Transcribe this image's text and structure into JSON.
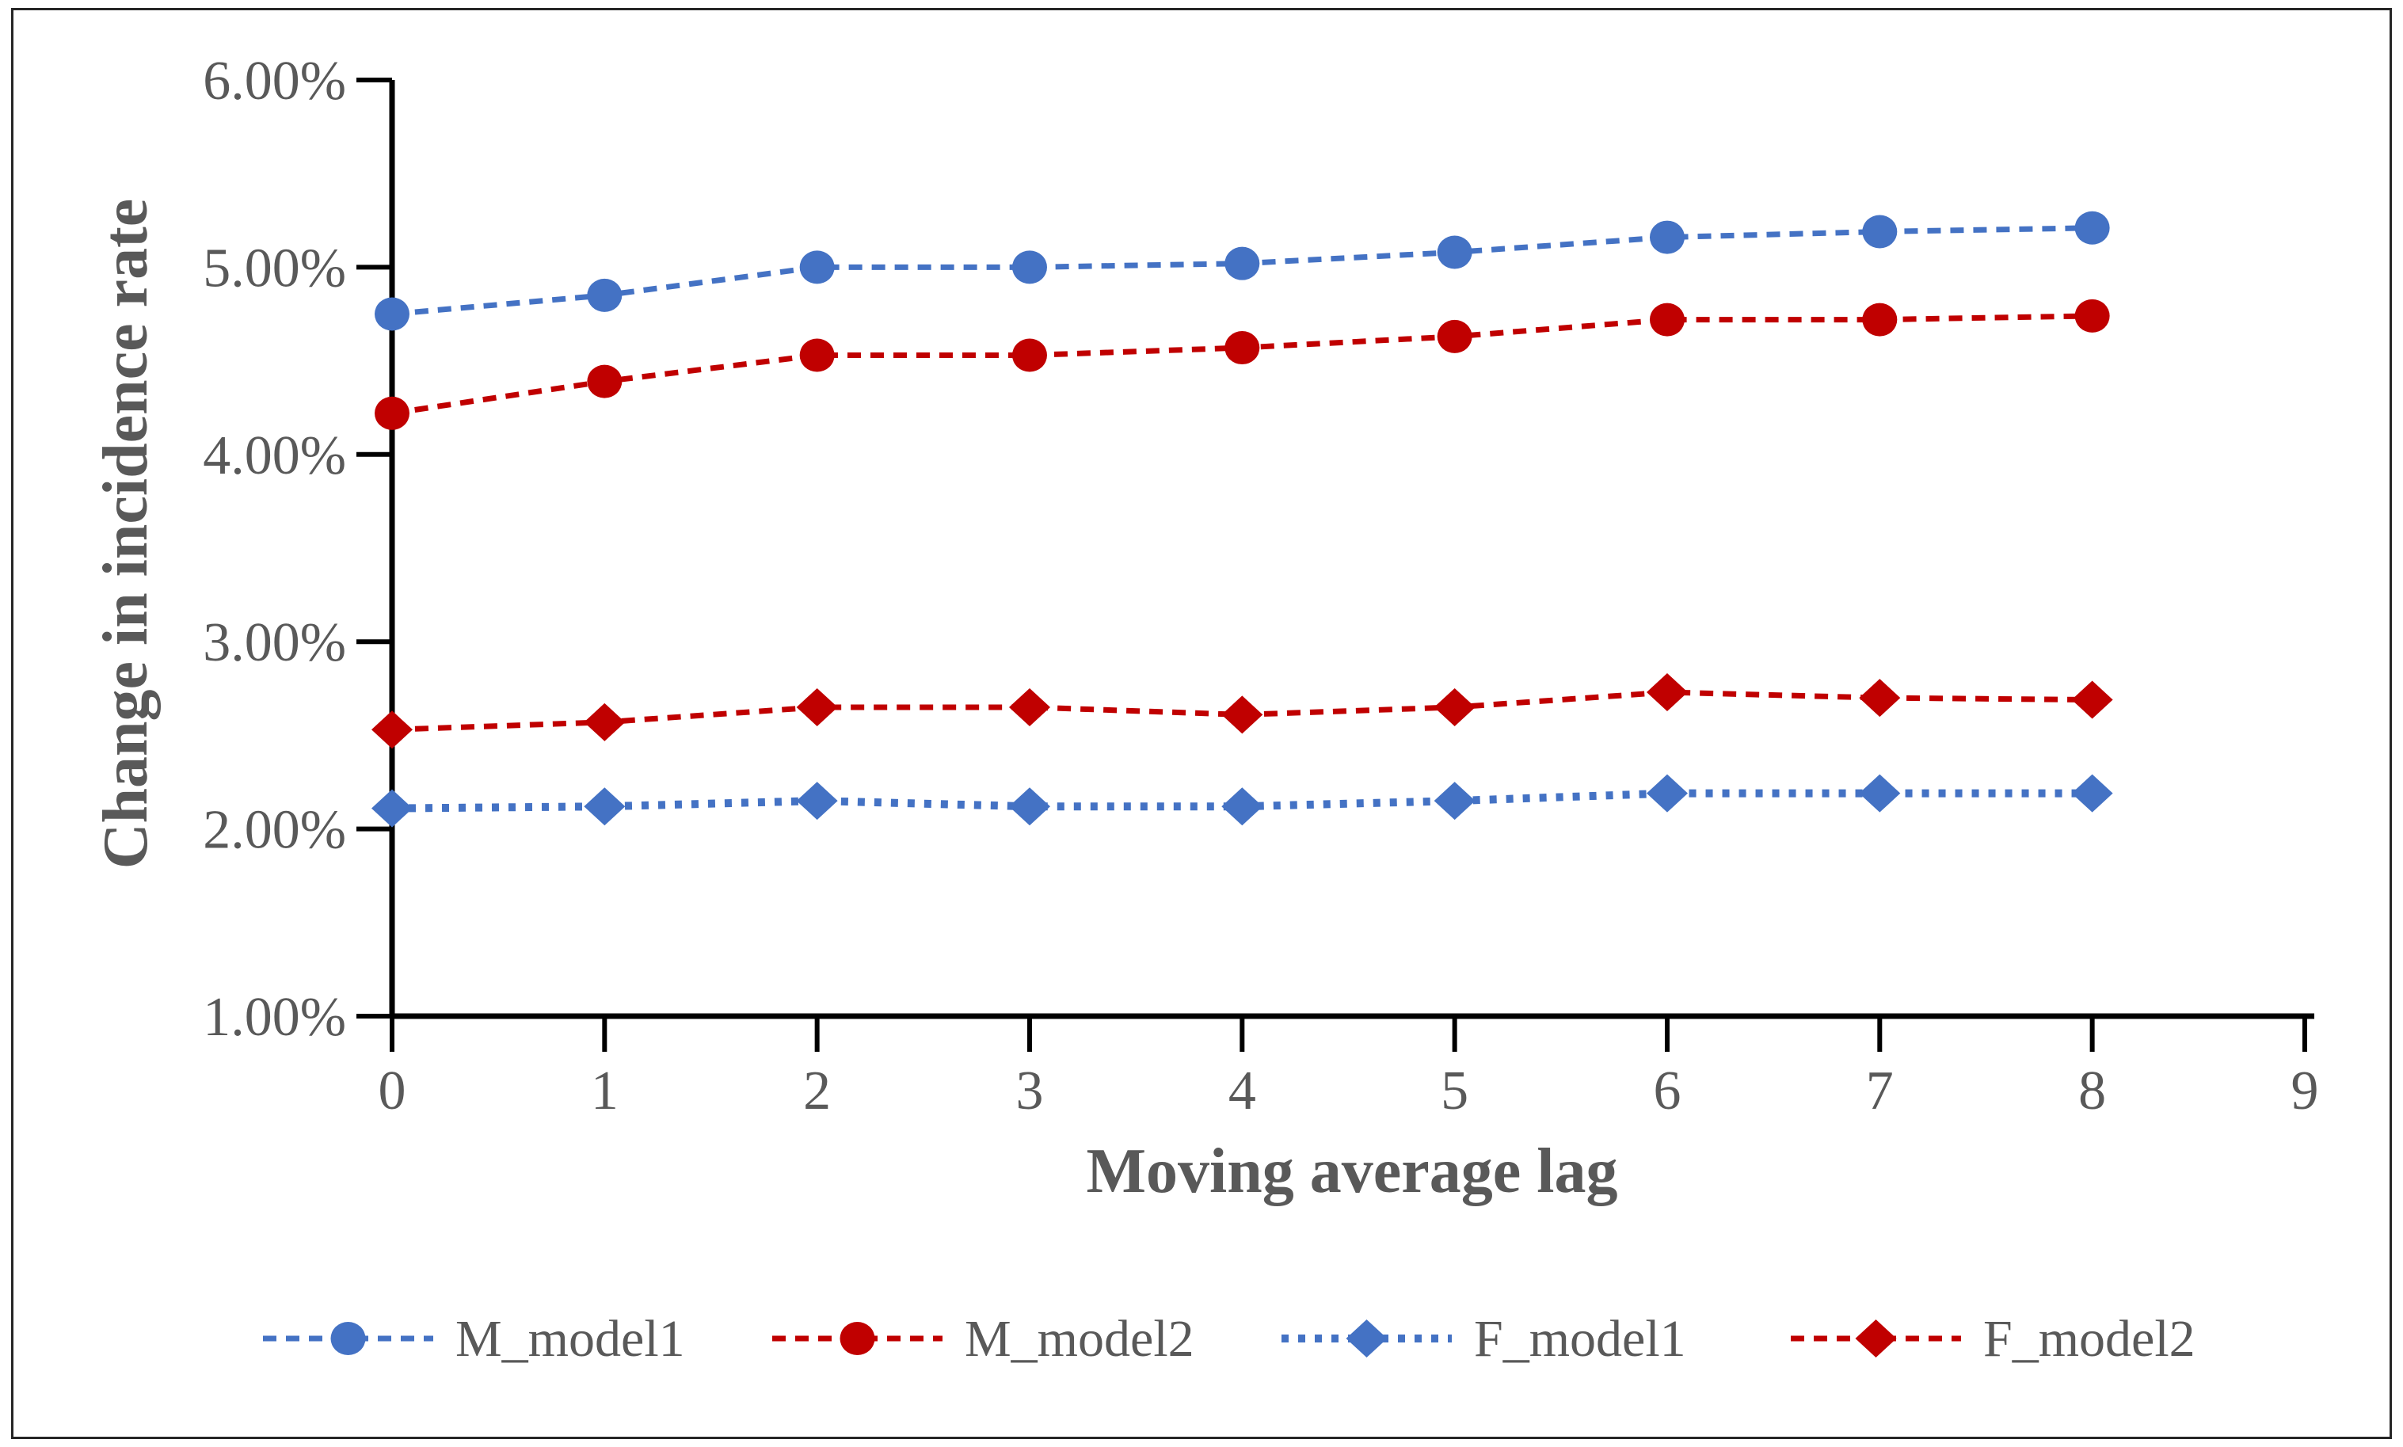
{
  "figure": {
    "background_color": "#ffffff",
    "border_color": "#262626"
  },
  "chart_data": {
    "type": "line",
    "title": "",
    "xlabel": "Moving average lag",
    "ylabel": "Change in incidence rate",
    "x": [
      0,
      1,
      2,
      3,
      4,
      5,
      6,
      7,
      8
    ],
    "xlim": [
      0,
      9
    ],
    "ylim": [
      1.0,
      6.0
    ],
    "y_tick_step": 1.0,
    "x_ticks": [
      "0",
      "1",
      "2",
      "3",
      "4",
      "5",
      "6",
      "7",
      "8",
      "9"
    ],
    "y_ticks": [
      "1.00%",
      "2.00%",
      "3.00%",
      "4.00%",
      "5.00%",
      "6.00%"
    ],
    "grid": false,
    "legend_position": "bottom",
    "axis_color": "#000000",
    "tick_label_color": "#595959",
    "series": [
      {
        "name": "M_model1",
        "color": "#4472C4",
        "marker": "circle",
        "line_style": "dashed",
        "values": [
          4.75,
          4.85,
          5.0,
          5.0,
          5.02,
          5.08,
          5.16,
          5.19,
          5.21
        ]
      },
      {
        "name": "M_model2",
        "color": "#C00000",
        "marker": "circle",
        "line_style": "dashed",
        "values": [
          4.22,
          4.39,
          4.53,
          4.53,
          4.57,
          4.63,
          4.72,
          4.72,
          4.74
        ]
      },
      {
        "name": "F_model1",
        "color": "#4472C4",
        "marker": "diamond",
        "line_style": "dotted",
        "values": [
          2.11,
          2.12,
          2.15,
          2.12,
          2.12,
          2.15,
          2.19,
          2.19,
          2.19
        ]
      },
      {
        "name": "F_model2",
        "color": "#C00000",
        "marker": "diamond",
        "line_style": "dashed",
        "values": [
          2.53,
          2.57,
          2.65,
          2.65,
          2.61,
          2.65,
          2.73,
          2.7,
          2.69
        ]
      }
    ]
  }
}
